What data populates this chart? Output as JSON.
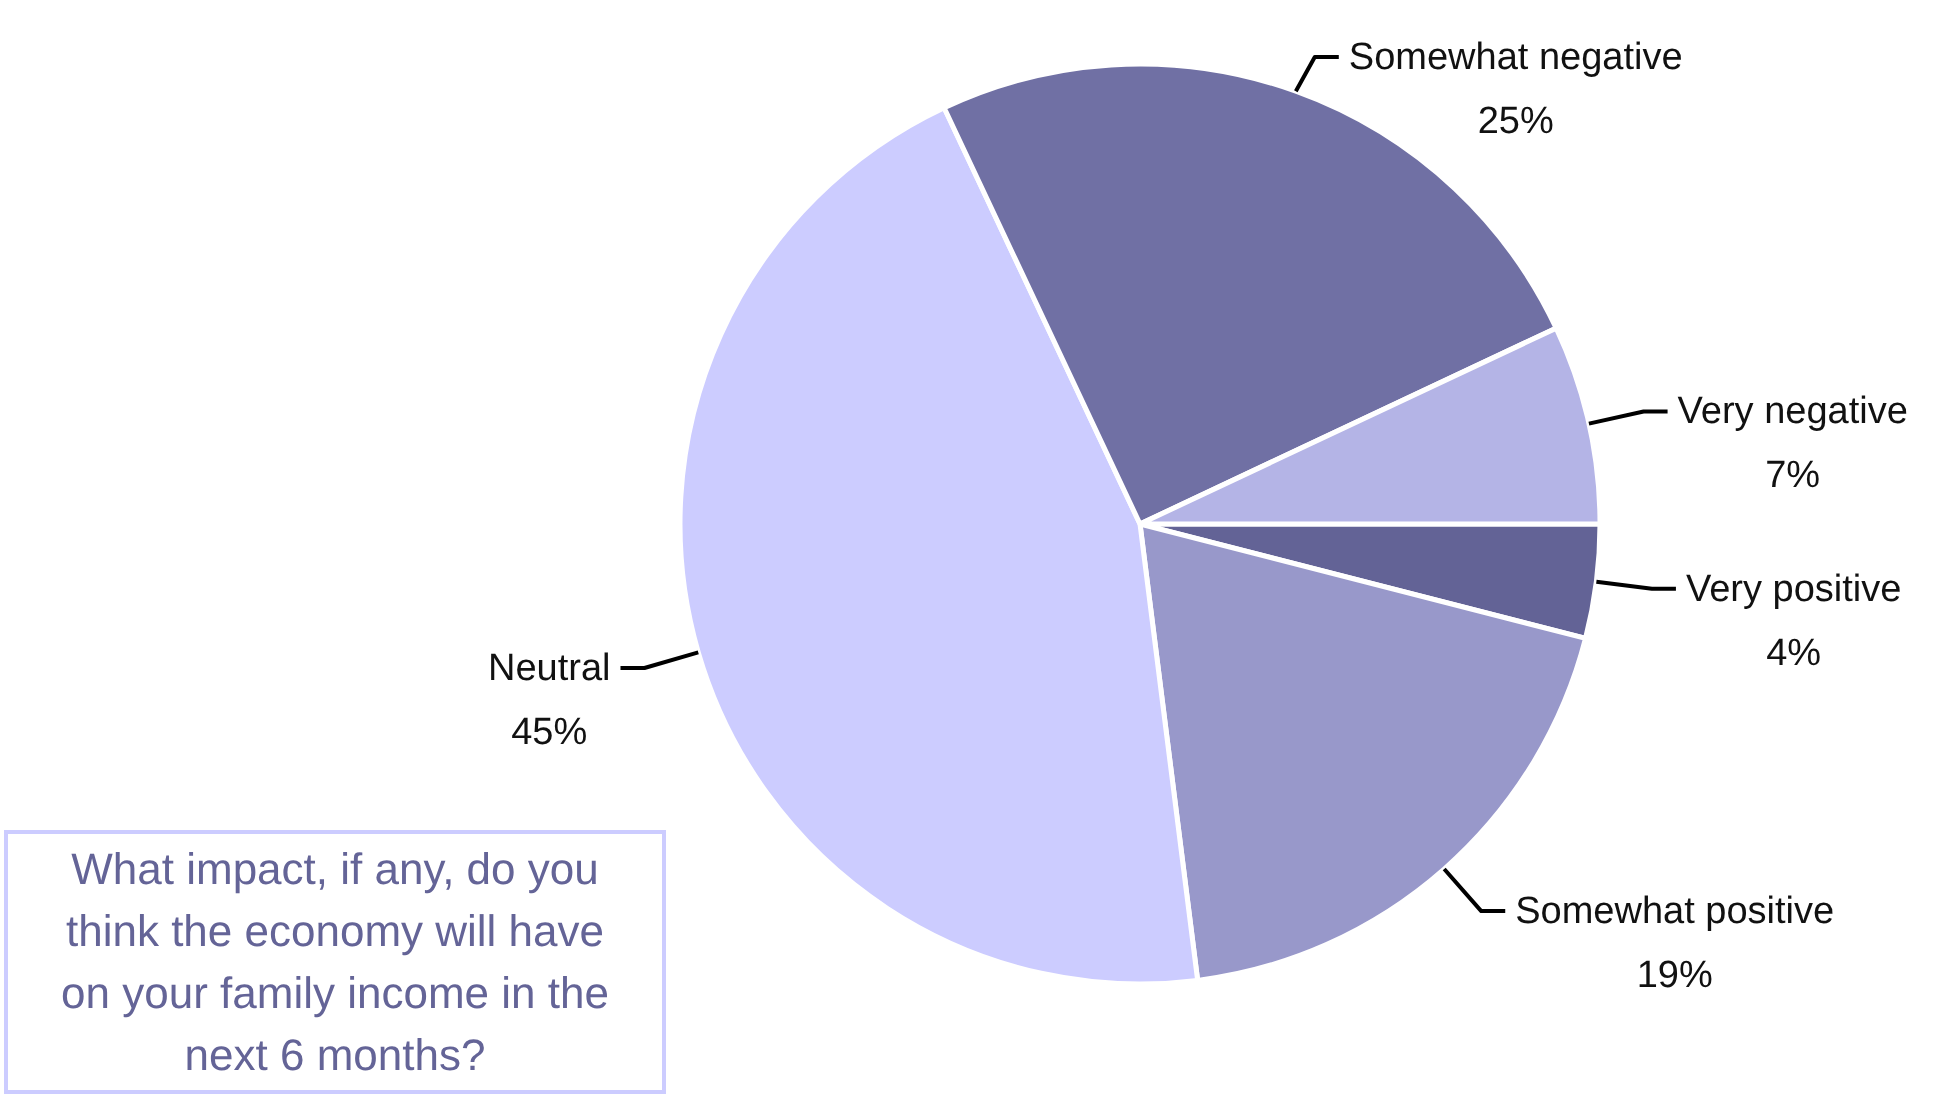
{
  "chart_data": {
    "type": "pie",
    "categories": [
      "Very positive",
      "Somewhat positive",
      "Neutral",
      "Somewhat negative",
      "Very negative"
    ],
    "values": [
      4,
      19,
      45,
      25,
      7
    ],
    "value_labels": [
      "4%",
      "19%",
      "45%",
      "25%",
      "7%"
    ],
    "colors": [
      "#636396",
      "#9898ca",
      "#ccccff",
      "#7070a4",
      "#b4b4e6"
    ],
    "annotations": [
      "What impact, if any, do you think the economy will have on your family income in the next 6 months?"
    ]
  }
}
